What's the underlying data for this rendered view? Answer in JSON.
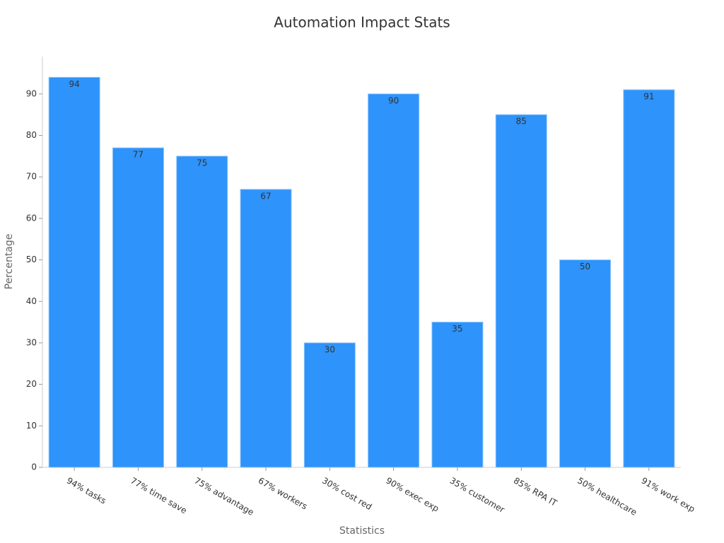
{
  "chart_data": {
    "type": "bar",
    "title": "Automation Impact Stats",
    "x_label": "Statistics",
    "y_label": "Percentage",
    "categories": [
      "94% tasks",
      "77% time save",
      "75% advantage",
      "67% workers",
      "30% cost red",
      "90% exec exp",
      "35% customer",
      "85% RPA IT",
      "50% healthcare",
      "91% work exp"
    ],
    "values": [
      94,
      77,
      75,
      67,
      30,
      90,
      35,
      85,
      50,
      91
    ],
    "color": "#2e93fa",
    "ylim": [
      0,
      99
    ],
    "yticks": [
      0,
      10,
      20,
      30,
      40,
      50,
      60,
      70,
      80,
      90
    ]
  }
}
